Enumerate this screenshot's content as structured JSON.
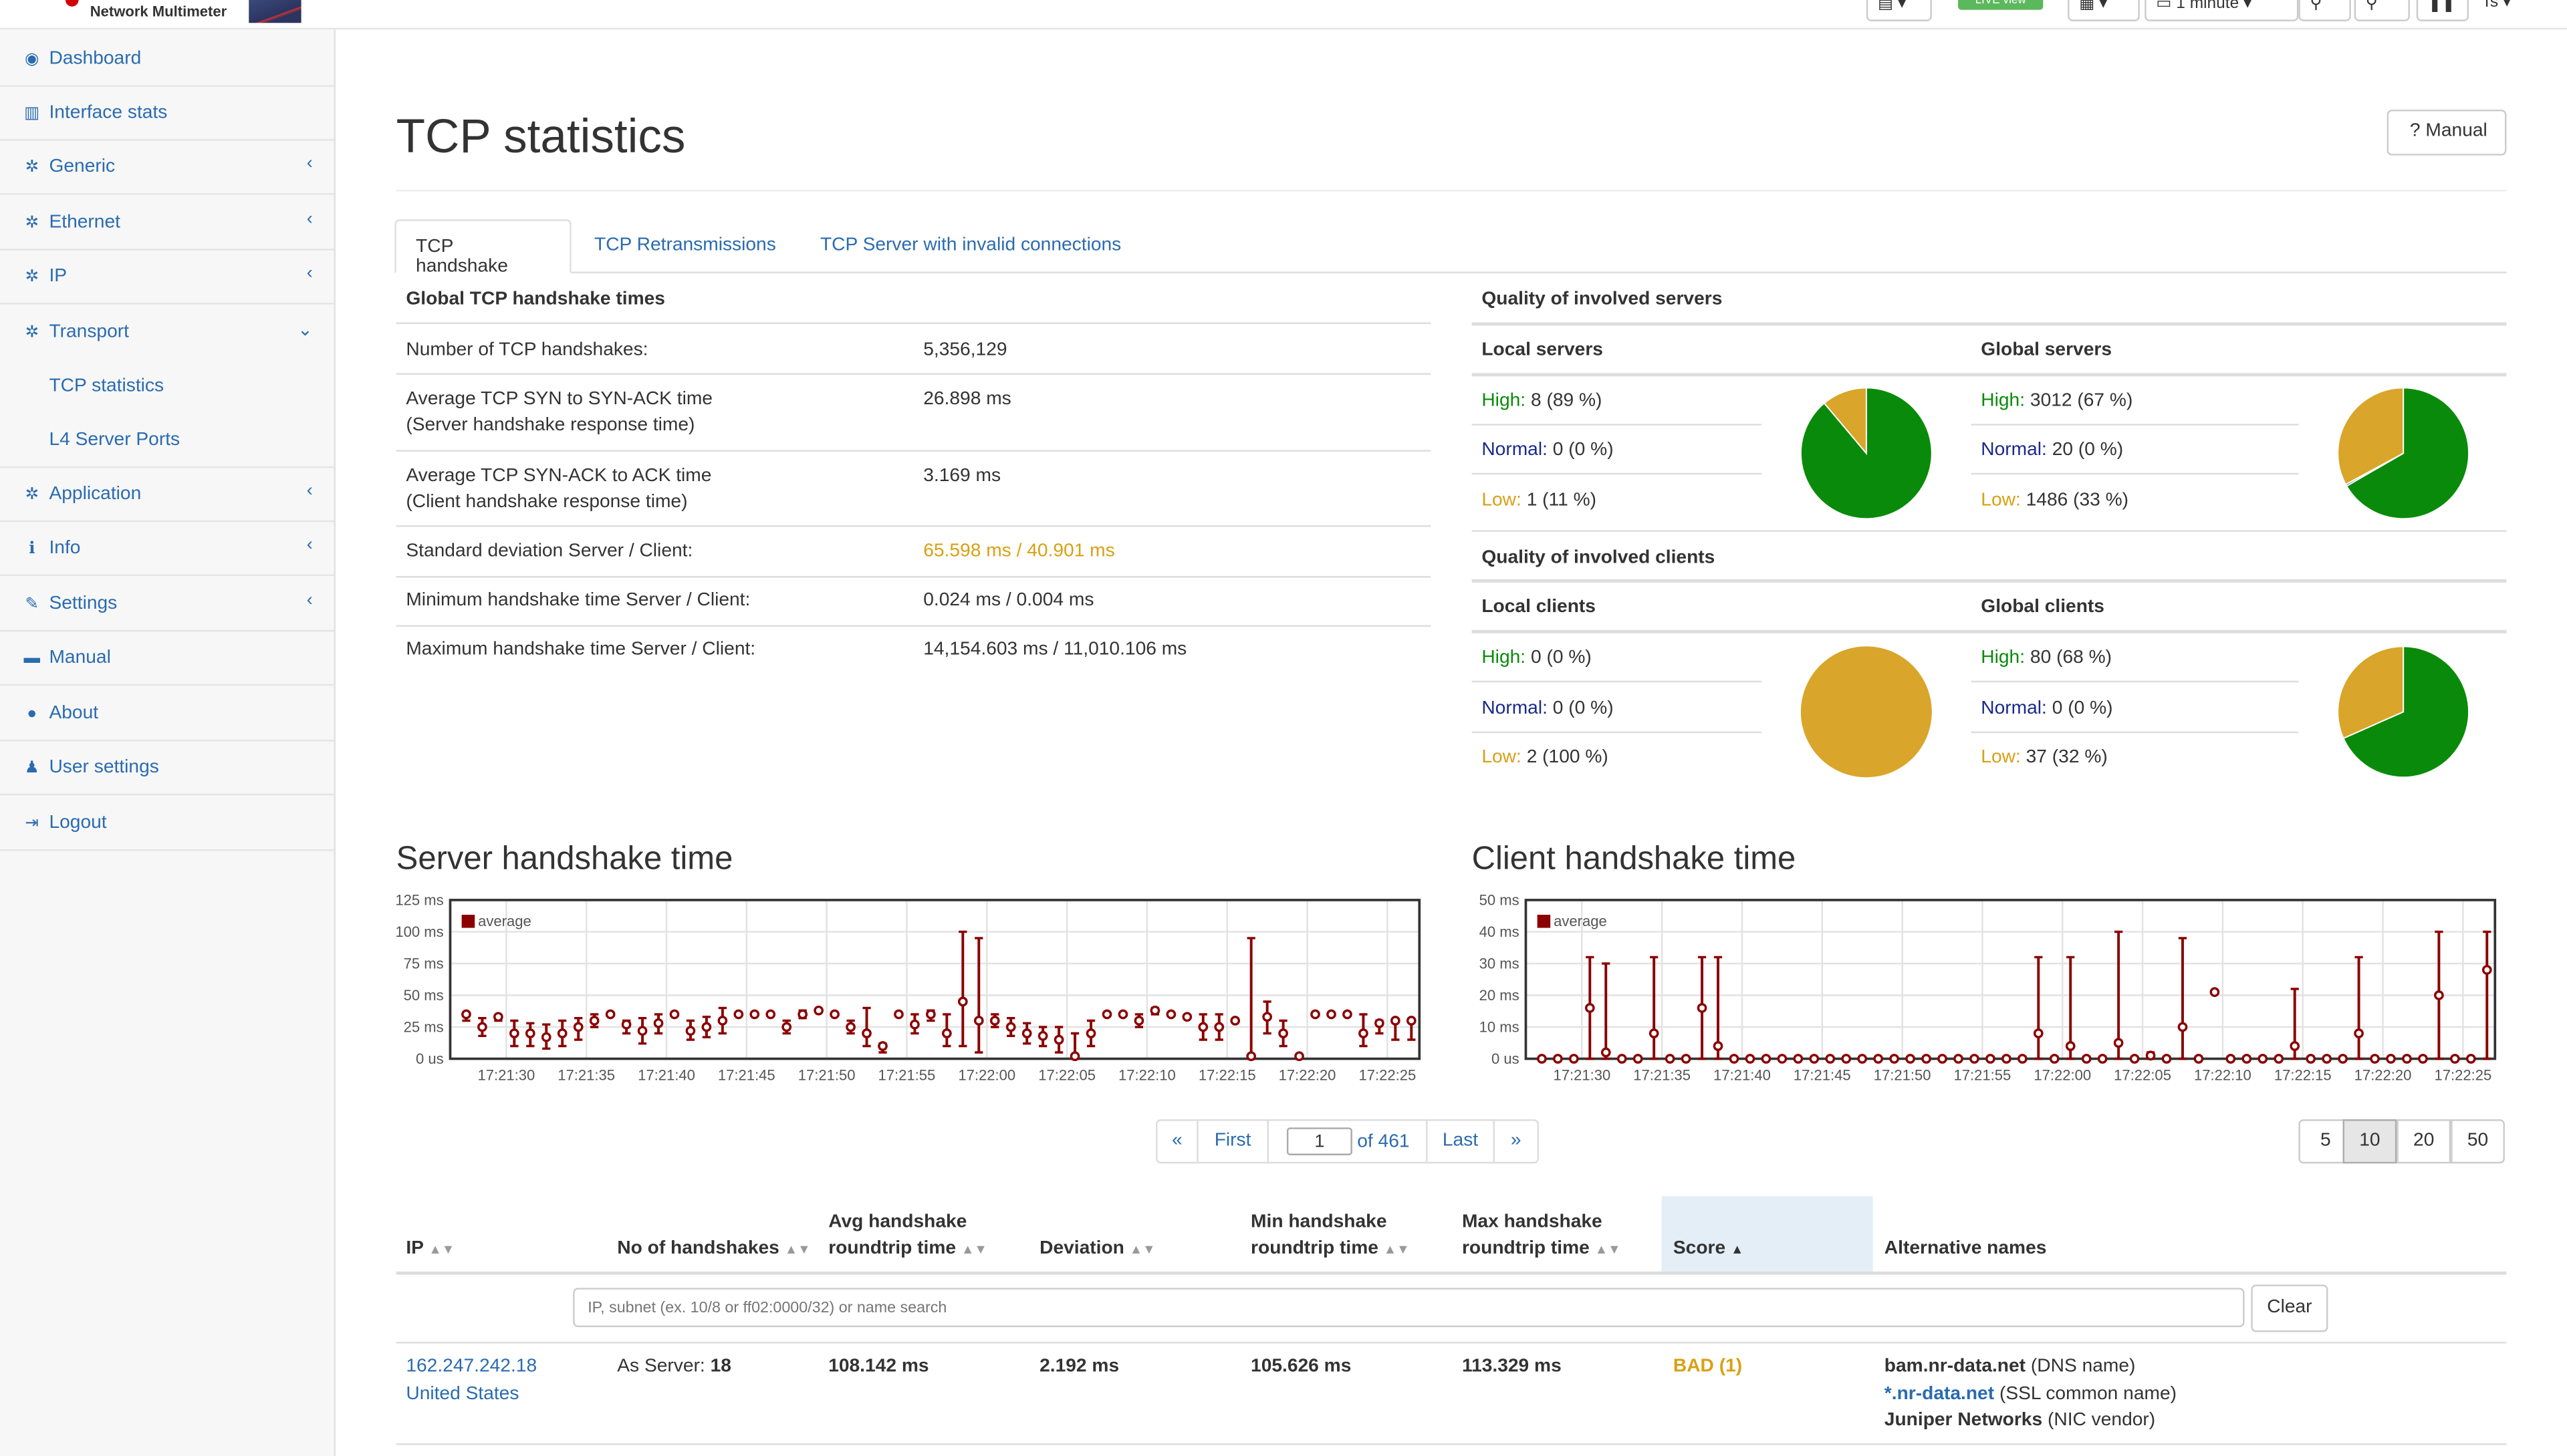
{
  "app": {
    "name": "Network Multimeter"
  },
  "topbar": {
    "live_label": "LIVE view",
    "interval_label": "1 minute",
    "user_label": "Ts"
  },
  "sidebar": {
    "items": [
      {
        "label": "Dashboard",
        "icon": "dashboard-icon"
      },
      {
        "label": "Interface stats",
        "icon": "bar-chart-icon"
      },
      {
        "label": "Generic",
        "icon": "gear-icon"
      },
      {
        "label": "Ethernet",
        "icon": "gear-icon"
      },
      {
        "label": "IP",
        "icon": "gear-icon"
      },
      {
        "label": "Transport",
        "icon": "gear-icon"
      },
      {
        "label": "TCP statistics"
      },
      {
        "label": "L4 Server Ports"
      },
      {
        "label": "Application",
        "icon": "gear-icon"
      },
      {
        "label": "Info",
        "icon": "info-icon"
      },
      {
        "label": "Settings",
        "icon": "wrench-icon"
      },
      {
        "label": "Manual",
        "icon": "book-icon"
      },
      {
        "label": "About",
        "icon": "info-circle-icon"
      },
      {
        "label": "User settings",
        "icon": "user-icon"
      },
      {
        "label": "Logout",
        "icon": "logout-icon"
      }
    ]
  },
  "page": {
    "title": "TCP statistics",
    "manual_label": "? Manual"
  },
  "tabs": [
    "TCP handshake",
    "TCP Retransmissions",
    "TCP Server with invalid connections"
  ],
  "global": {
    "title": "Global TCP handshake times",
    "rows": [
      {
        "label": "Number of TCP handshakes:",
        "label2": "",
        "value": "5,356,129"
      },
      {
        "label": "Average TCP SYN to SYN-ACK time",
        "label2": "(Server handshake response time)",
        "value": "26.898 ms"
      },
      {
        "label": "Average TCP SYN-ACK to ACK time",
        "label2": "(Client handshake response time)",
        "value": "3.169 ms"
      },
      {
        "label": "Standard deviation Server / Client:",
        "label2": "",
        "value": "65.598 ms / 40.901 ms"
      },
      {
        "label": "Minimum handshake time Server / Client:",
        "label2": "",
        "value": "0.024 ms / 0.004 ms"
      },
      {
        "label": "Maximum handshake time Server / Client:",
        "label2": "",
        "value": "14,154.603 ms / 11,010.106 ms"
      }
    ]
  },
  "quality_servers": {
    "title": "Quality of involved servers",
    "local": {
      "title": "Local servers",
      "high_label": "High:",
      "high": "8 (89 %)",
      "normal_label": "Normal:",
      "normal": "0 (0 %)",
      "low_label": "Low:",
      "low": "1 (11 %)",
      "pie": [
        8,
        0,
        1
      ]
    },
    "global": {
      "title": "Global servers",
      "high_label": "High:",
      "high": "3012 (67 %)",
      "normal_label": "Normal:",
      "normal": "20 (0 %)",
      "low_label": "Low:",
      "low": "1486 (33 %)",
      "pie": [
        3012,
        20,
        1486
      ]
    }
  },
  "quality_clients": {
    "title": "Quality of involved clients",
    "local": {
      "title": "Local clients",
      "high_label": "High:",
      "high": "0 (0 %)",
      "normal_label": "Normal:",
      "normal": "0 (0 %)",
      "low_label": "Low:",
      "low": "2 (100 %)",
      "pie": [
        0,
        0,
        2
      ]
    },
    "global": {
      "title": "Global clients",
      "high_label": "High:",
      "high": "80 (68 %)",
      "normal_label": "Normal:",
      "normal": "0 (0 %)",
      "low_label": "Low:",
      "low": "37 (32 %)",
      "pie": [
        80,
        0,
        37
      ]
    }
  },
  "colors": {
    "high": "#0a8a0a",
    "low": "#d9a52a",
    "series": "#8b0000"
  },
  "chart_data": [
    {
      "type": "scatter",
      "title": "Server handshake time",
      "legend": "average",
      "legend_position": "top-left",
      "y_unit": "ms",
      "ylim": [
        0,
        125
      ],
      "yticks": [
        "0 us",
        "25 ms",
        "50 ms",
        "75 ms",
        "100 ms",
        "125 ms"
      ],
      "xticks": [
        "17:21:30",
        "17:21:35",
        "17:21:40",
        "17:21:45",
        "17:21:50",
        "17:21:55",
        "17:22:00",
        "17:22:05",
        "17:22:10",
        "17:22:15",
        "17:22:20",
        "17:22:25"
      ],
      "x_seconds": [
        27.5,
        28.5,
        29.5,
        30.5,
        31.5,
        32.5,
        33.5,
        34.5,
        35.5,
        36.5,
        37.5,
        38.5,
        39.5,
        40.5,
        41.5,
        42.5,
        43.5,
        44.5,
        45.5,
        46.5,
        47.5,
        48.5,
        49.5,
        50.5,
        51.5,
        52.5,
        53.5,
        54.5,
        55.5,
        56.5,
        57.5,
        58.5,
        59.5,
        60.5,
        61.5,
        62.5,
        63.5,
        64.5,
        65.5,
        66.5,
        67.5,
        68.5,
        69.5,
        70.5,
        71.5,
        72.5,
        73.5,
        74.5,
        75.5,
        76.5,
        77.5,
        78.5,
        79.5,
        80.5,
        81.5,
        82.5,
        83.5,
        84.5,
        85.5,
        86.5
      ],
      "values": [
        35,
        25,
        33,
        20,
        20,
        17,
        20,
        25,
        30,
        35,
        27,
        22,
        28,
        35,
        22,
        25,
        30,
        35,
        35,
        35,
        25,
        35,
        38,
        35,
        25,
        20,
        10,
        35,
        27,
        35,
        20,
        45,
        30,
        30,
        25,
        20,
        18,
        15,
        2,
        20,
        35,
        35,
        30,
        38,
        35,
        33,
        25,
        25,
        30,
        2,
        33,
        20,
        2,
        35,
        35,
        35,
        20,
        28,
        30,
        30
      ],
      "max": [
        35,
        32,
        33,
        30,
        28,
        27,
        30,
        32,
        35,
        35,
        30,
        32,
        35,
        35,
        30,
        33,
        40,
        35,
        35,
        35,
        30,
        38,
        38,
        35,
        30,
        40,
        12,
        35,
        35,
        38,
        35,
        100,
        95,
        35,
        32,
        28,
        25,
        25,
        20,
        30,
        35,
        35,
        35,
        40,
        35,
        33,
        35,
        35,
        30,
        95,
        45,
        30,
        2,
        35,
        35,
        35,
        35,
        30,
        30,
        30
      ],
      "min": [
        30,
        18,
        30,
        10,
        10,
        8,
        10,
        15,
        25,
        35,
        20,
        12,
        20,
        35,
        15,
        17,
        20,
        35,
        35,
        35,
        20,
        32,
        38,
        35,
        20,
        10,
        5,
        35,
        20,
        30,
        10,
        10,
        5,
        25,
        18,
        12,
        10,
        5,
        0,
        10,
        35,
        35,
        25,
        35,
        35,
        33,
        15,
        15,
        30,
        0,
        20,
        10,
        2,
        35,
        35,
        35,
        10,
        20,
        15,
        15
      ]
    },
    {
      "type": "scatter",
      "title": "Client handshake time",
      "legend": "average",
      "legend_position": "top-left",
      "y_unit": "ms",
      "ylim": [
        0,
        50
      ],
      "yticks": [
        "0 us",
        "10 ms",
        "20 ms",
        "30 ms",
        "40 ms",
        "50 ms"
      ],
      "xticks": [
        "17:21:30",
        "17:21:35",
        "17:21:40",
        "17:21:45",
        "17:21:50",
        "17:21:55",
        "17:22:00",
        "17:22:05",
        "17:22:10",
        "17:22:15",
        "17:22:20",
        "17:22:25"
      ],
      "x_seconds": [
        27.5,
        28.5,
        29.5,
        30.5,
        31.5,
        32.5,
        33.5,
        34.5,
        35.5,
        36.5,
        37.5,
        38.5,
        39.5,
        40.5,
        41.5,
        42.5,
        43.5,
        44.5,
        45.5,
        46.5,
        47.5,
        48.5,
        49.5,
        50.5,
        51.5,
        52.5,
        53.5,
        54.5,
        55.5,
        56.5,
        57.5,
        58.5,
        59.5,
        60.5,
        61.5,
        62.5,
        63.5,
        64.5,
        65.5,
        66.5,
        67.5,
        68.5,
        69.5,
        70.5,
        71.5,
        72.5,
        73.5,
        74.5,
        75.5,
        76.5,
        77.5,
        78.5,
        79.5,
        80.5,
        81.5,
        82.5,
        83.5,
        84.5,
        85.5,
        86.5
      ],
      "values": [
        0,
        0,
        0,
        16,
        2,
        0,
        0,
        8,
        0,
        0,
        16,
        4,
        0,
        0,
        0,
        0,
        0,
        0,
        0,
        0,
        0,
        0,
        0,
        0,
        0,
        0,
        0,
        0,
        0,
        0,
        0,
        8,
        0,
        4,
        0,
        0,
        5,
        0,
        1,
        0,
        10,
        0,
        21,
        0,
        0,
        0,
        0,
        4,
        0,
        0,
        0,
        8,
        0,
        0,
        0,
        0,
        20,
        0,
        0,
        28
      ],
      "max": [
        0,
        0,
        0,
        32,
        30,
        0,
        0,
        32,
        0,
        0,
        32,
        32,
        0,
        0,
        0,
        0,
        0,
        0,
        0,
        0,
        0,
        0,
        0,
        0,
        0,
        0,
        0,
        0,
        0,
        0,
        0,
        32,
        0,
        32,
        0,
        0,
        40,
        0,
        2,
        0,
        38,
        0,
        21,
        0,
        0,
        0,
        0,
        22,
        0,
        0,
        0,
        32,
        0,
        0,
        0,
        0,
        40,
        0,
        0,
        40
      ],
      "min": [
        0,
        0,
        0,
        0,
        0,
        0,
        0,
        0,
        0,
        0,
        0,
        0,
        0,
        0,
        0,
        0,
        0,
        0,
        0,
        0,
        0,
        0,
        0,
        0,
        0,
        0,
        0,
        0,
        0,
        0,
        0,
        0,
        0,
        0,
        0,
        0,
        0,
        0,
        0,
        0,
        0,
        0,
        21,
        0,
        0,
        0,
        0,
        0,
        0,
        0,
        0,
        0,
        0,
        0,
        0,
        0,
        0,
        0,
        0,
        0
      ]
    }
  ],
  "pagination": {
    "prev": "«",
    "first": "First",
    "current": "1",
    "of_label": "of 461",
    "last": "Last",
    "next": "»",
    "sizes": [
      "5",
      "10",
      "20",
      "50"
    ],
    "active_size": "10"
  },
  "table": {
    "columns": {
      "ip": "IP",
      "handshakes": "No of handshakes",
      "avg1": "Avg handshake",
      "avg2": "roundtrip time",
      "deviation": "Deviation",
      "min1": "Min handshake",
      "min2": "roundtrip time",
      "max1": "Max handshake",
      "max2": "roundtrip time",
      "score": "Score",
      "alt": "Alternative names"
    },
    "filter_placeholder": "IP, subnet (ex. 10/8 or ff02:0000/32) or name search",
    "clear_label": "Clear",
    "rows": [
      {
        "ip": "162.247.242.18",
        "country": "United States",
        "handshakes_label": "As Server:",
        "handshakes": "18",
        "avg": "108.142 ms",
        "deviation": "2.192 ms",
        "min": "105.626 ms",
        "max": "113.329 ms",
        "score": "BAD (1)",
        "alt1_name": "bam.nr-data.net",
        "alt1_type": "(DNS name)",
        "alt2_name": "*.nr-data.net",
        "alt2_type": "(SSL common name)",
        "alt3_name": "Juniper Networks",
        "alt3_type": "(NIC vendor)"
      }
    ]
  }
}
